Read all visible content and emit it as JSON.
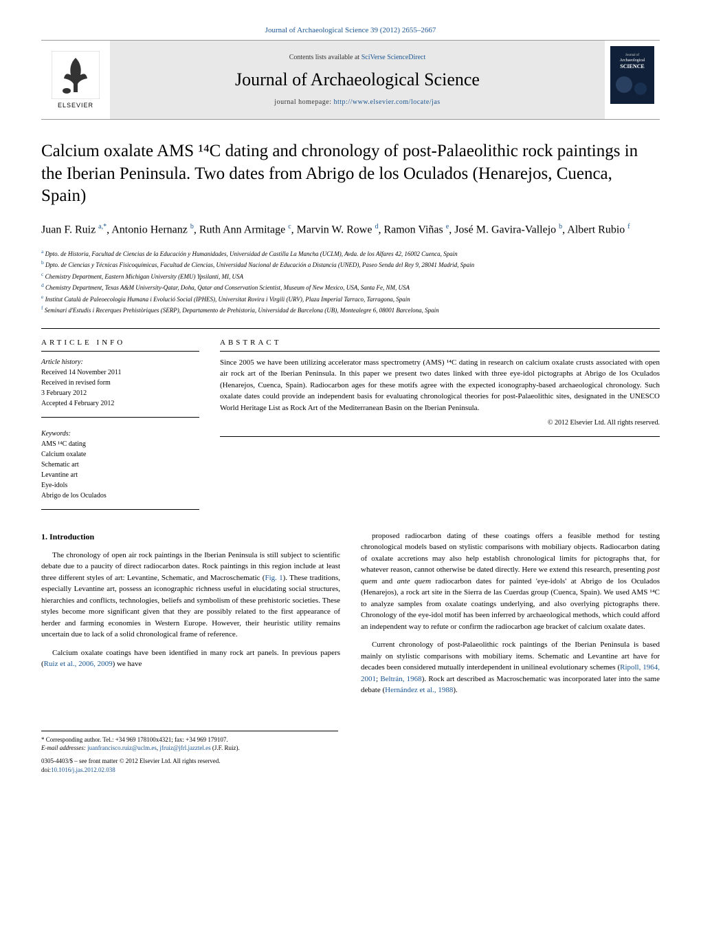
{
  "journal_ref": {
    "text": "Journal of Archaeological Science 39 (2012) 2655–2667",
    "link_label": "Journal of Archaeological Science 39 (2012) 2655–2667"
  },
  "header": {
    "contents_prefix": "Contents lists available at ",
    "contents_link": "SciVerse ScienceDirect",
    "journal_title": "Journal of Archaeological Science",
    "homepage_prefix": "journal homepage: ",
    "homepage_link": "http://www.elsevier.com/locate/jas",
    "publisher": "ELSEVIER",
    "cover_label": "Archaeological SCIENCE"
  },
  "article": {
    "title": "Calcium oxalate AMS ¹⁴C dating and chronology of post-Palaeolithic rock paintings in the Iberian Peninsula. Two dates from Abrigo de los Oculados (Henarejos, Cuenca, Spain)",
    "authors_html": "Juan F. Ruiz <sup>a,*</sup>, Antonio Hernanz <sup>b</sup>, Ruth Ann Armitage <sup>c</sup>, Marvin W. Rowe <sup>d</sup>, Ramon Viñas <sup>e</sup>, José M. Gavira-Vallejo <sup>b</sup>, Albert Rubio <sup>f</sup>",
    "affiliations": [
      {
        "sup": "a",
        "text": "Dpto. de Historia, Facultad de Ciencias de la Educación y Humanidades, Universidad de Castilla La Mancha (UCLM), Avda. de los Alfares 42, 16002 Cuenca, Spain"
      },
      {
        "sup": "b",
        "text": "Dpto. de Ciencias y Técnicas Fisicoquímicas, Facultad de Ciencias, Universidad Nacional de Educación a Distancia (UNED), Paseo Senda del Rey 9, 28041 Madrid, Spain"
      },
      {
        "sup": "c",
        "text": "Chemistry Department, Eastern Michigan University (EMU) Ypsilanti, MI, USA"
      },
      {
        "sup": "d",
        "text": "Chemistry Department, Texas A&M University-Qatar, Doha, Qatar and Conservation Scientist, Museum of New Mexico, USA, Santa Fe, NM, USA"
      },
      {
        "sup": "e",
        "text": "Institut Català de Paleoecologia Humana i Evolució Social (IPHES), Universitat Rovira i Virgili (URV), Plaza Imperial Tarraco, Tarragona, Spain"
      },
      {
        "sup": "f",
        "text": "Seminari d'Estudis i Recerques Prehistòriques (SERP), Departamento de Prehistoria, Universidad de Barcelona (UB), Montealegre 6, 08001 Barcelona, Spain"
      }
    ]
  },
  "info": {
    "label": "ARTICLE INFO",
    "history_label": "Article history:",
    "history": [
      "Received 14 November 2011",
      "Received in revised form",
      "3 February 2012",
      "Accepted 4 February 2012"
    ],
    "keywords_label": "Keywords:",
    "keywords": [
      "AMS ¹⁴C dating",
      "Calcium oxalate",
      "Schematic art",
      "Levantine art",
      "Eye-idols",
      "Abrigo de los Oculados"
    ]
  },
  "abstract": {
    "label": "ABSTRACT",
    "text": "Since 2005 we have been utilizing accelerator mass spectrometry (AMS) ¹⁴C dating in research on calcium oxalate crusts associated with open air rock art of the Iberian Peninsula. In this paper we present two dates linked with three eye-idol pictographs at Abrigo de los Oculados (Henarejos, Cuenca, Spain). Radiocarbon ages for these motifs agree with the expected iconography-based archaeological chronology. Such oxalate dates could provide an independent basis for evaluating chronological theories for post-Palaeolithic sites, designated in the UNESCO World Heritage List as Rock Art of the Mediterranean Basin on the Iberian Peninsula.",
    "copyright": "© 2012 Elsevier Ltd. All rights reserved."
  },
  "body": {
    "heading": "1. Introduction",
    "col1_p1": "The chronology of open air rock paintings in the Iberian Peninsula is still subject to scientific debate due to a paucity of direct radiocarbon dates. Rock paintings in this region include at least three different styles of art: Levantine, Schematic, and Macroschematic (Fig. 1). These traditions, especially Levantine art, possess an iconographic richness useful in elucidating social structures, hierarchies and conflicts, technologies, beliefs and symbolism of these prehistoric societies. These styles become more significant given that they are possibly related to the first appearance of herder and farming economies in Western Europe. However, their heuristic utility remains uncertain due to lack of a solid chronological frame of reference.",
    "col1_p2": "Calcium oxalate coatings have been identified in many rock art panels. In previous papers (Ruiz et al., 2006, 2009) we have",
    "col2_p1": "proposed radiocarbon dating of these coatings offers a feasible method for testing chronological models based on stylistic comparisons with mobiliary objects. Radiocarbon dating of oxalate accretions may also help establish chronological limits for pictographs that, for whatever reason, cannot otherwise be dated directly. Here we extend this research, presenting post quem and ante quem radiocarbon dates for painted 'eye-idols' at Abrigo de los Oculados (Henarejos), a rock art site in the Sierra de las Cuerdas group (Cuenca, Spain). We used AMS ¹⁴C to analyze samples from oxalate coatings underlying, and also overlying pictographs there. Chronology of the eye-idol motif has been inferred by archaeological methods, which could afford an independent way to refute or confirm the radiocarbon age bracket of calcium oxalate dates.",
    "col2_p2": "Current chronology of post-Palaeolithic rock paintings of the Iberian Peninsula is based mainly on stylistic comparisons with mobiliary items. Schematic and Levantine art have for decades been considered mutually interdependent in unilineal evolutionary schemes (Ripoll, 1964, 2001; Beltrán, 1968). Rock art described as Macroschematic was incorporated later into the same debate (Hernández et al., 1988)."
  },
  "footnotes": {
    "corr": "* Corresponding author. Tel.: +34 969 178100x4321; fax: +34 969 179107.",
    "email_prefix": "E-mail addresses: ",
    "email1": "juanfrancisco.ruiz@uclm.es",
    "email_sep": ", ",
    "email2": "jfruiz@jfrl.jazztel.es",
    "email_suffix": " (J.F. Ruiz).",
    "issn": "0305-4403/$ – see front matter © 2012 Elsevier Ltd. All rights reserved.",
    "doi_prefix": "doi:",
    "doi": "10.1016/j.jas.2012.02.038"
  },
  "colors": {
    "link": "#1a5490",
    "header_bg": "#e8e8e8",
    "rule": "#000000",
    "elsevier_orange": "#ff6600",
    "cover_bg": "#102038"
  }
}
